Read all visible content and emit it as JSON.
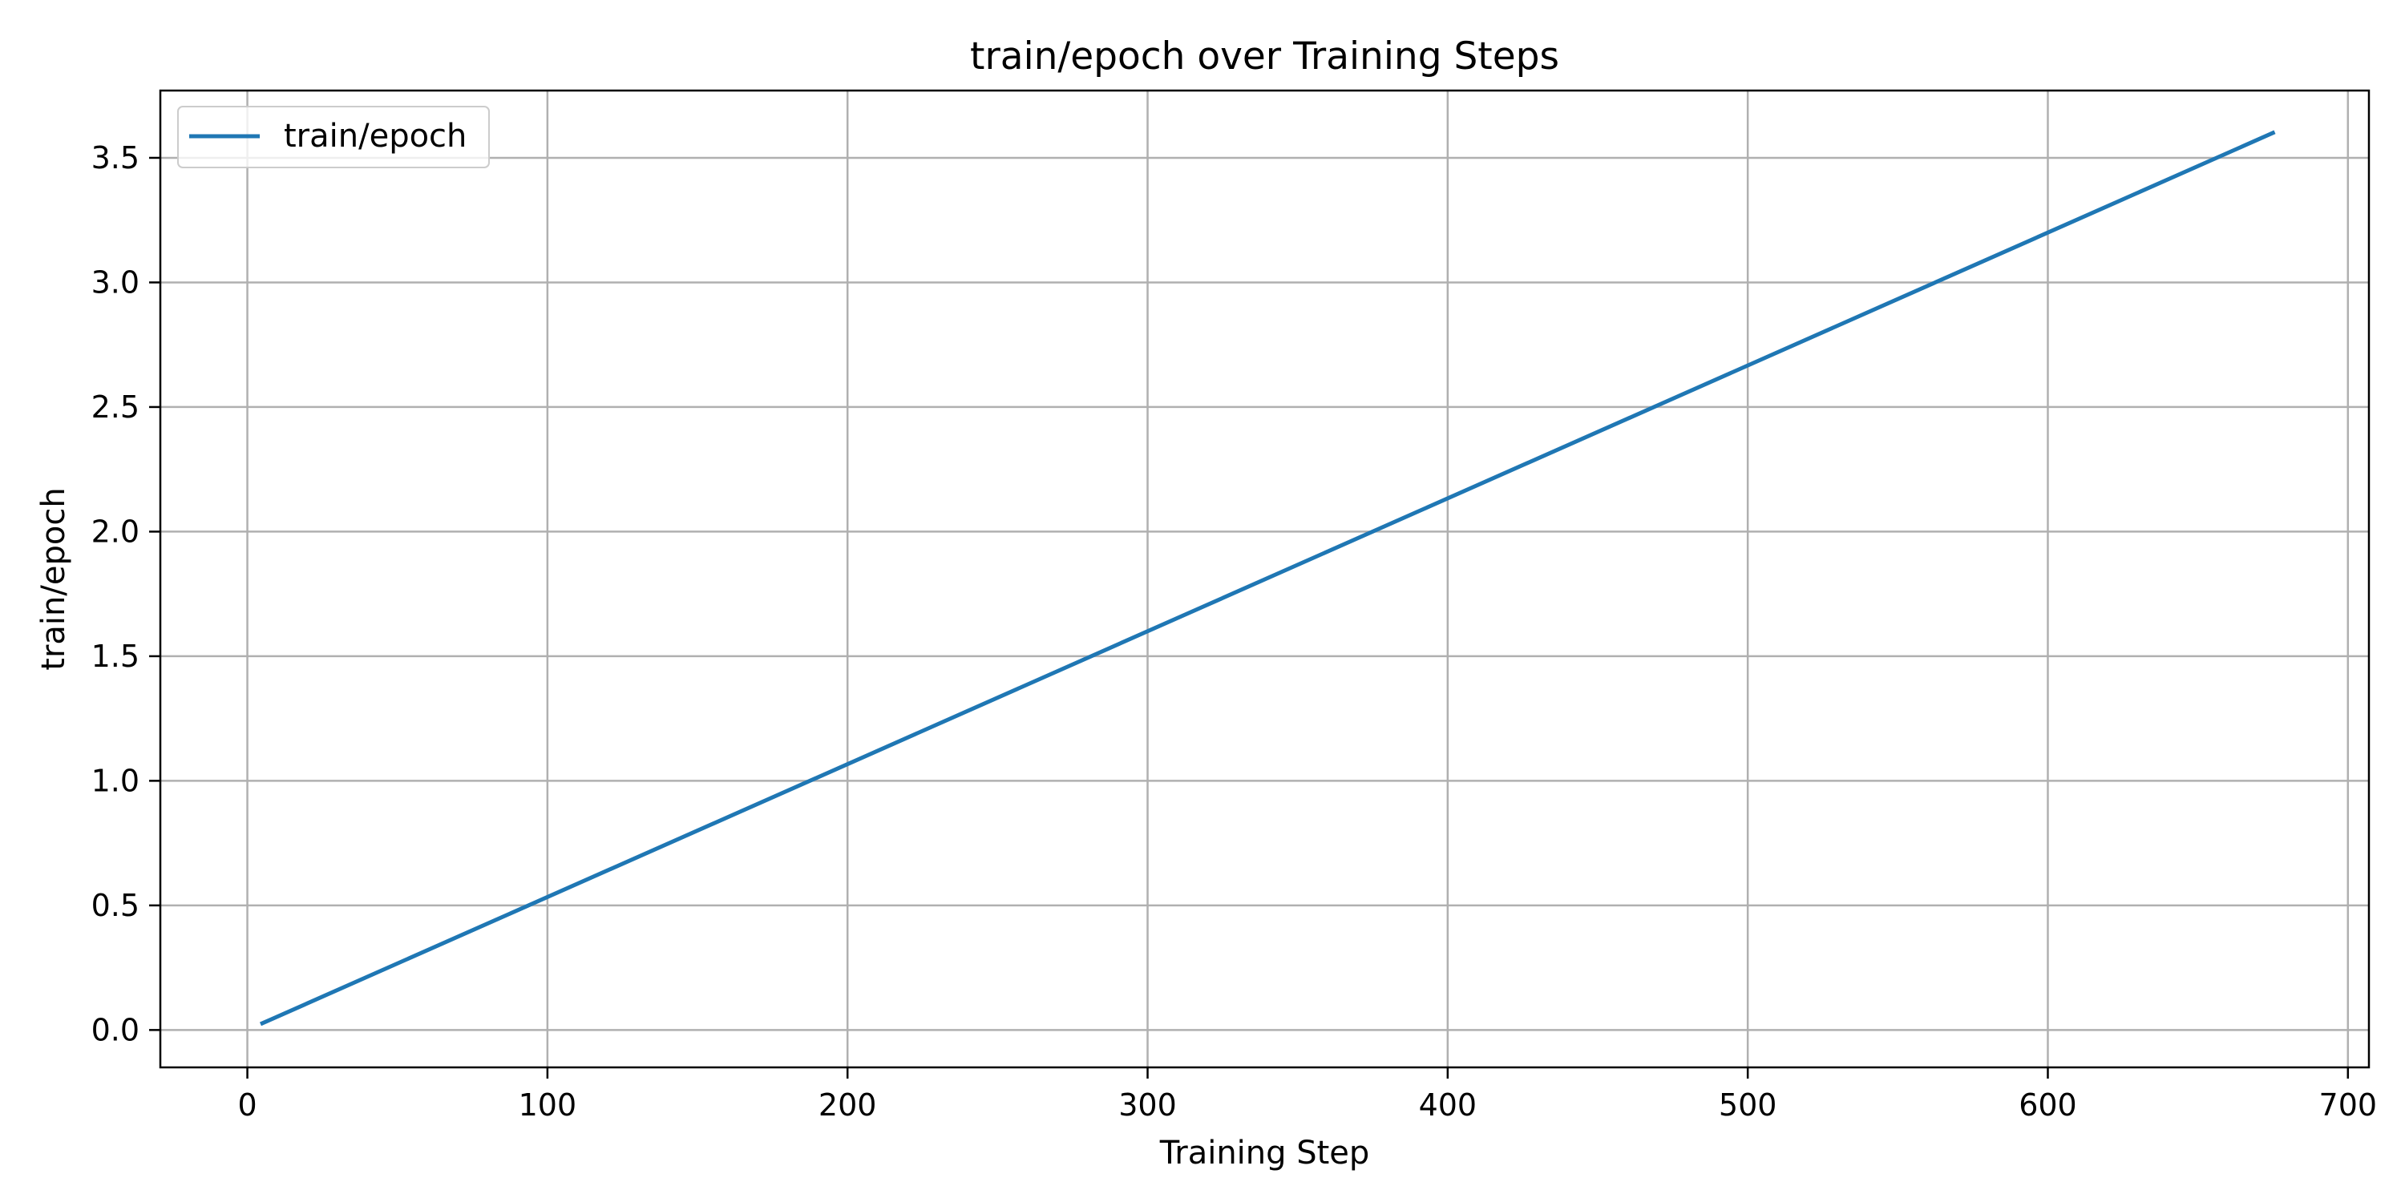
{
  "chart_data": {
    "type": "line",
    "title": "train/epoch over Training Steps",
    "xlabel": "Training Step",
    "ylabel": "train/epoch",
    "xlim": [
      -29,
      707
    ],
    "ylim": [
      -0.15,
      3.77
    ],
    "x_ticks": [
      0,
      100,
      200,
      300,
      400,
      500,
      600,
      700
    ],
    "y_ticks": [
      0.0,
      0.5,
      1.0,
      1.5,
      2.0,
      2.5,
      3.0,
      3.5
    ],
    "grid": true,
    "legend_position": "top-left",
    "series": [
      {
        "name": "train/epoch",
        "color": "#1f77b4",
        "x": [
          5,
          675
        ],
        "y": [
          0.027,
          3.6
        ]
      }
    ]
  }
}
